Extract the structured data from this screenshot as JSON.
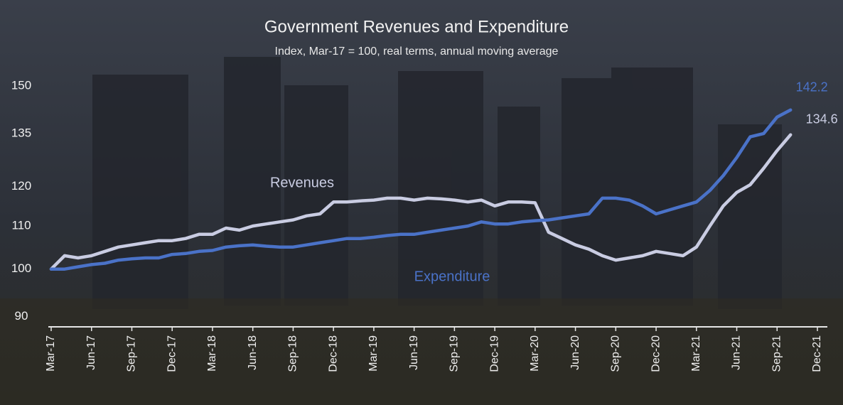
{
  "chart_data": {
    "type": "line",
    "title": "Government Revenues and Expenditure",
    "subtitle": "Index, Mar-17 = 100, real terms, annual moving average",
    "categories": [
      "Mar-17",
      null,
      null,
      "Jun-17",
      null,
      null,
      "Sep-17",
      null,
      null,
      "Dec-17",
      null,
      null,
      "Mar-18",
      null,
      null,
      "Jun-18",
      null,
      null,
      "Sep-18",
      null,
      null,
      "Dec-18",
      null,
      null,
      "Mar-19",
      null,
      null,
      "Jun-19",
      null,
      null,
      "Sep-19",
      null,
      null,
      "Dec-19",
      null,
      null,
      "Mar-20",
      null,
      null,
      "Jun-20",
      null,
      null,
      "Sep-20",
      null,
      null,
      "Dec-20",
      null,
      null,
      "Mar-21",
      null,
      null,
      "Jun-21",
      null,
      null,
      "Sep-21",
      null,
      null,
      "Dec-21"
    ],
    "series": [
      {
        "name": "Revenues",
        "color": "#c9cce2",
        "values": [
          100,
          103,
          102.5,
          103,
          104,
          105,
          105.5,
          106,
          106.5,
          106.5,
          107,
          108,
          108,
          109.5,
          109,
          110,
          110.5,
          111,
          111.5,
          112.5,
          113,
          116,
          116,
          116.3,
          116.5,
          117,
          117,
          116.5,
          117,
          116.8,
          116.5,
          116,
          116.5,
          115,
          116,
          116,
          115.8,
          108.5,
          107,
          105.5,
          104.5,
          103,
          102,
          102.5,
          103,
          104,
          103.5,
          103,
          105,
          110,
          115,
          118.5,
          120.5,
          125,
          130,
          134.6,
          null,
          null
        ]
      },
      {
        "name": "Expenditure",
        "color": "#4a72c8",
        "values": [
          100,
          100,
          100.5,
          101,
          101.3,
          102,
          102.3,
          102.5,
          102.5,
          103.3,
          103.5,
          104,
          104.2,
          105,
          105.3,
          105.5,
          105.2,
          105,
          105,
          105.5,
          106,
          106.5,
          107,
          107,
          107.3,
          107.7,
          108,
          108,
          108.5,
          109,
          109.5,
          110,
          111,
          110.5,
          110.5,
          111,
          111.3,
          111.5,
          112,
          112.5,
          113,
          117,
          117,
          116.5,
          115,
          113,
          114,
          115,
          116,
          119,
          123,
          128,
          134,
          135,
          140,
          142.2,
          null,
          null
        ]
      }
    ],
    "ylim": [
      88,
      155
    ],
    "yticks": [
      90,
      100,
      110,
      120,
      135,
      150
    ],
    "log_scale": true,
    "grid": false
  }
}
